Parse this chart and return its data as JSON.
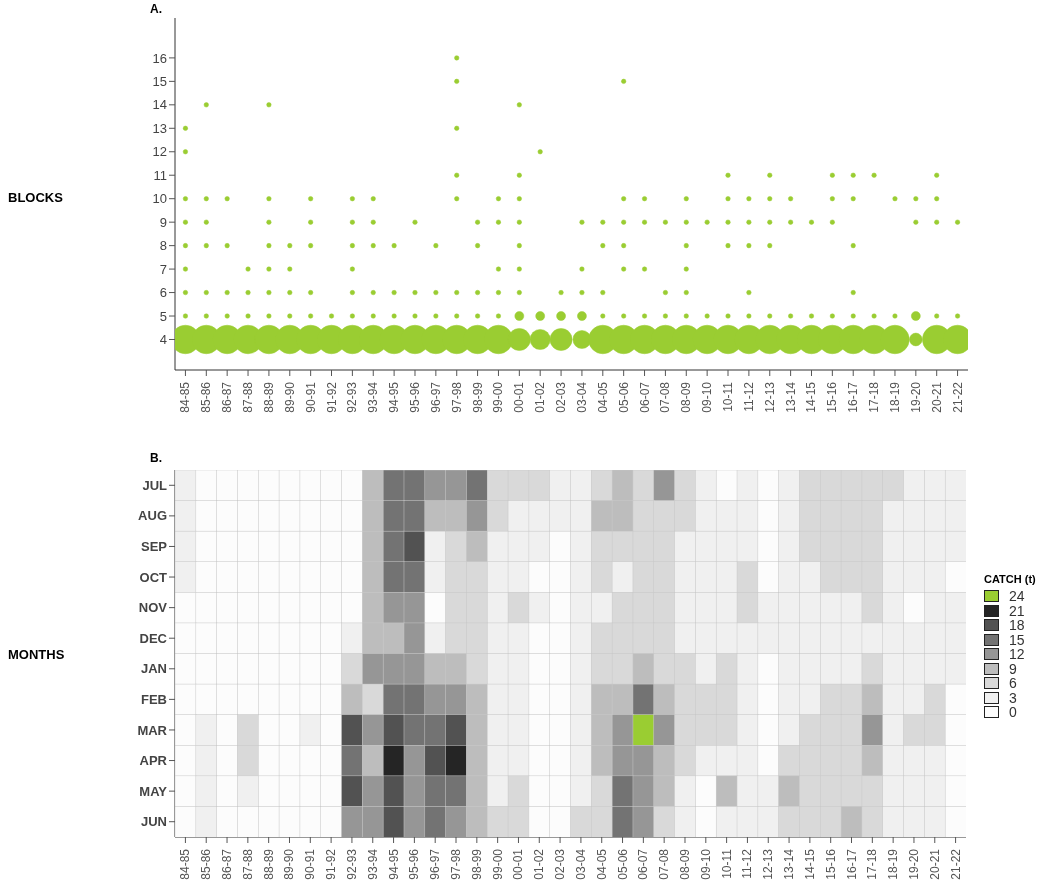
{
  "chart_data": [
    {
      "type": "bubble",
      "title": "A.",
      "ylabel": "BLOCKS",
      "categories": [
        "84-85",
        "85-86",
        "86-87",
        "87-88",
        "88-89",
        "89-90",
        "90-91",
        "91-92",
        "92-93",
        "93-94",
        "94-95",
        "95-96",
        "96-97",
        "97-98",
        "98-99",
        "99-00",
        "00-01",
        "01-02",
        "02-03",
        "03-04",
        "04-05",
        "05-06",
        "06-07",
        "07-08",
        "08-09",
        "09-10",
        "10-11",
        "11-12",
        "12-13",
        "13-14",
        "14-15",
        "15-16",
        "16-17",
        "17-18",
        "18-19",
        "19-20",
        "20-21",
        "21-22"
      ],
      "ylim": [
        2.7,
        17.7
      ],
      "yticks": [
        4,
        5,
        6,
        7,
        8,
        9,
        10,
        11,
        12,
        13,
        14,
        15,
        16
      ],
      "series": [
        {
          "type": "bubble",
          "color": "#9acd32",
          "x": [
            "84-85",
            "85-86",
            "86-87",
            "87-88",
            "88-89",
            "89-90",
            "90-91",
            "91-92",
            "92-93",
            "93-94",
            "94-95",
            "95-96",
            "96-97",
            "97-98",
            "98-99",
            "99-00",
            "00-01",
            "01-02",
            "02-03",
            "03-04",
            "04-05",
            "05-06",
            "06-07",
            "07-08",
            "08-09",
            "09-10",
            "10-11",
            "11-12",
            "12-13",
            "13-14",
            "14-15",
            "15-16",
            "16-17",
            "17-18",
            "18-19",
            "19-20",
            "20-21",
            "21-22",
            "00-01",
            "01-02",
            "02-03",
            "03-04",
            "19-20"
          ],
          "values": [
            4,
            4,
            4,
            4,
            4,
            4,
            4,
            4,
            4,
            4,
            4,
            4,
            4,
            4,
            4,
            4,
            4,
            4,
            4,
            4,
            4,
            4,
            4,
            4,
            4,
            4,
            4,
            4,
            4,
            4,
            4,
            4,
            4,
            4,
            4,
            4,
            4,
            4,
            5,
            5,
            5,
            5,
            5
          ],
          "sizes": [
            1,
            1,
            1,
            1,
            1,
            1,
            1,
            1,
            1,
            1,
            1,
            1,
            1,
            1,
            1,
            1,
            0.6,
            0.5,
            0.6,
            0.4,
            1,
            1,
            1,
            1,
            1,
            1,
            1,
            1,
            1,
            1,
            1,
            1,
            1,
            1,
            1,
            0.2,
            1,
            1,
            0.1,
            0.1,
            0.1,
            0.1,
            0.1
          ]
        },
        {
          "type": "scatter",
          "color": "#9acd32",
          "x": [
            "84-85",
            "84-85",
            "84-85",
            "84-85",
            "84-85",
            "84-85",
            "84-85",
            "84-85",
            "85-86",
            "85-86",
            "85-86",
            "85-86",
            "85-86",
            "85-86",
            "86-87",
            "86-87",
            "86-87",
            "86-87",
            "87-88",
            "87-88",
            "87-88",
            "88-89",
            "88-89",
            "88-89",
            "88-89",
            "88-89",
            "88-89",
            "88-89",
            "89-90",
            "89-90",
            "89-90",
            "89-90",
            "90-91",
            "90-91",
            "90-91",
            "90-91",
            "90-91",
            "91-92",
            "92-93",
            "92-93",
            "92-93",
            "92-93",
            "92-93",
            "92-93",
            "93-94",
            "93-94",
            "93-94",
            "93-94",
            "93-94",
            "94-95",
            "94-95",
            "94-95",
            "95-96",
            "95-96",
            "95-96",
            "96-97",
            "96-97",
            "96-97",
            "97-98",
            "97-98",
            "97-98",
            "97-98",
            "97-98",
            "97-98",
            "97-98",
            "98-99",
            "98-99",
            "98-99",
            "98-99",
            "99-00",
            "99-00",
            "99-00",
            "99-00",
            "99-00",
            "00-01",
            "00-01",
            "00-01",
            "00-01",
            "00-01",
            "00-01",
            "00-01",
            "01-02",
            "02-03",
            "03-04",
            "03-04",
            "03-04",
            "04-05",
            "04-05",
            "04-05",
            "04-05",
            "05-06",
            "05-06",
            "05-06",
            "05-06",
            "05-06",
            "05-06",
            "06-07",
            "06-07",
            "06-07",
            "06-07",
            "07-08",
            "07-08",
            "07-08",
            "08-09",
            "08-09",
            "08-09",
            "08-09",
            "08-09",
            "08-09",
            "09-10",
            "09-10",
            "10-11",
            "10-11",
            "10-11",
            "10-11",
            "10-11",
            "11-12",
            "11-12",
            "11-12",
            "11-12",
            "11-12",
            "12-13",
            "12-13",
            "12-13",
            "12-13",
            "12-13",
            "13-14",
            "13-14",
            "13-14",
            "14-15",
            "14-15",
            "15-16",
            "15-16",
            "15-16",
            "15-16",
            "16-17",
            "16-17",
            "16-17",
            "16-17",
            "16-17",
            "17-18",
            "17-18",
            "18-19",
            "18-19",
            "19-20",
            "19-20",
            "20-21",
            "20-21",
            "20-21",
            "20-21",
            "21-22",
            "21-22"
          ],
          "values": [
            13,
            12,
            10,
            9,
            8,
            7,
            6,
            5,
            14,
            10,
            9,
            8,
            6,
            5,
            10,
            8,
            6,
            5,
            7,
            6,
            5,
            14,
            10,
            9,
            8,
            7,
            6,
            5,
            8,
            7,
            6,
            5,
            10,
            9,
            8,
            6,
            5,
            5,
            10,
            9,
            8,
            7,
            6,
            5,
            10,
            9,
            8,
            6,
            5,
            8,
            6,
            5,
            9,
            6,
            5,
            8,
            6,
            5,
            16,
            15,
            13,
            11,
            10,
            6,
            5,
            9,
            8,
            6,
            5,
            10,
            9,
            7,
            6,
            5,
            14,
            11,
            10,
            9,
            8,
            7,
            6,
            12,
            6,
            9,
            7,
            6,
            9,
            8,
            6,
            5,
            15,
            10,
            9,
            8,
            7,
            5,
            10,
            9,
            7,
            5,
            9,
            6,
            5,
            10,
            9,
            8,
            7,
            6,
            5,
            9,
            5,
            11,
            10,
            9,
            8,
            5,
            10,
            9,
            8,
            6,
            5,
            11,
            10,
            9,
            8,
            5,
            10,
            9,
            5,
            9,
            5,
            11,
            10,
            9,
            5,
            11,
            10,
            8,
            6,
            5,
            11,
            5,
            10,
            5,
            10,
            9,
            11,
            10,
            9,
            5,
            9,
            5
          ]
        }
      ]
    },
    {
      "type": "heatmap",
      "title": "B.",
      "ylabel": "MONTHS",
      "clabel": "CATCH (t)",
      "categories": [
        "84-85",
        "85-86",
        "86-87",
        "87-88",
        "88-89",
        "89-90",
        "90-91",
        "91-92",
        "92-93",
        "93-94",
        "94-95",
        "95-96",
        "96-97",
        "97-98",
        "98-99",
        "99-00",
        "00-01",
        "01-02",
        "02-03",
        "03-04",
        "04-05",
        "05-06",
        "06-07",
        "07-08",
        "08-09",
        "09-10",
        "10-11",
        "11-12",
        "12-13",
        "13-14",
        "14-15",
        "15-16",
        "16-17",
        "17-18",
        "18-19",
        "19-20",
        "20-21",
        "21-22"
      ],
      "y_categories": [
        "JUL",
        "AUG",
        "SEP",
        "OCT",
        "NOV",
        "DEC",
        "JAN",
        "FEB",
        "MAR",
        "APR",
        "MAY",
        "JUN"
      ],
      "cticks": [
        0,
        3,
        6,
        9,
        12,
        15,
        18,
        21,
        24
      ],
      "cells": [
        [
          4,
          1,
          1,
          1,
          1,
          1,
          1,
          1,
          1,
          10,
          16,
          16,
          13,
          13,
          16,
          7,
          7,
          7,
          4,
          4,
          7,
          10,
          7,
          13,
          7,
          4,
          1,
          4,
          1,
          4,
          7,
          7,
          7,
          7,
          7,
          4,
          4,
          4
        ],
        [
          4,
          1,
          1,
          1,
          1,
          1,
          1,
          1,
          1,
          10,
          16,
          16,
          10,
          10,
          13,
          7,
          4,
          4,
          4,
          4,
          10,
          10,
          7,
          7,
          7,
          4,
          4,
          4,
          1,
          4,
          7,
          7,
          7,
          7,
          4,
          4,
          4,
          4
        ],
        [
          4,
          1,
          1,
          1,
          1,
          1,
          1,
          1,
          1,
          10,
          16,
          19,
          4,
          7,
          10,
          4,
          4,
          4,
          1,
          4,
          7,
          7,
          7,
          7,
          4,
          4,
          4,
          4,
          1,
          4,
          7,
          7,
          7,
          7,
          4,
          4,
          4,
          4
        ],
        [
          4,
          1,
          1,
          1,
          1,
          1,
          1,
          1,
          1,
          10,
          16,
          16,
          4,
          7,
          7,
          4,
          4,
          1,
          1,
          4,
          7,
          4,
          7,
          7,
          4,
          4,
          4,
          7,
          1,
          4,
          4,
          7,
          7,
          7,
          4,
          4,
          4,
          1
        ],
        [
          1,
          1,
          1,
          1,
          1,
          1,
          1,
          1,
          1,
          10,
          13,
          13,
          1,
          7,
          7,
          4,
          7,
          4,
          1,
          4,
          4,
          7,
          7,
          7,
          4,
          4,
          4,
          7,
          4,
          4,
          4,
          4,
          4,
          7,
          4,
          1,
          4,
          4
        ],
        [
          1,
          1,
          1,
          1,
          1,
          1,
          1,
          1,
          4,
          10,
          10,
          13,
          4,
          7,
          7,
          4,
          4,
          1,
          1,
          4,
          7,
          7,
          7,
          7,
          4,
          4,
          4,
          4,
          4,
          4,
          4,
          4,
          4,
          4,
          4,
          4,
          4,
          4
        ],
        [
          1,
          1,
          1,
          1,
          1,
          1,
          1,
          1,
          7,
          13,
          13,
          13,
          10,
          10,
          7,
          4,
          4,
          1,
          1,
          4,
          7,
          7,
          10,
          7,
          7,
          4,
          7,
          4,
          1,
          4,
          4,
          4,
          4,
          7,
          4,
          4,
          4,
          4
        ],
        [
          1,
          1,
          1,
          1,
          1,
          1,
          1,
          1,
          10,
          7,
          16,
          16,
          13,
          13,
          10,
          4,
          4,
          1,
          1,
          4,
          10,
          10,
          16,
          10,
          7,
          7,
          7,
          4,
          1,
          4,
          4,
          7,
          7,
          10,
          4,
          4,
          7,
          1
        ],
        [
          1,
          4,
          1,
          7,
          1,
          1,
          4,
          1,
          19,
          13,
          19,
          16,
          16,
          19,
          10,
          4,
          4,
          1,
          1,
          4,
          10,
          13,
          24,
          13,
          7,
          7,
          7,
          4,
          1,
          4,
          7,
          7,
          7,
          13,
          4,
          7,
          7,
          1
        ],
        [
          1,
          4,
          1,
          7,
          1,
          1,
          1,
          1,
          16,
          10,
          22,
          13,
          19,
          22,
          10,
          4,
          4,
          1,
          1,
          4,
          10,
          13,
          13,
          10,
          7,
          4,
          4,
          4,
          1,
          7,
          7,
          7,
          7,
          10,
          4,
          4,
          4,
          1
        ],
        [
          1,
          4,
          1,
          4,
          1,
          1,
          1,
          1,
          19,
          13,
          19,
          13,
          16,
          16,
          10,
          4,
          7,
          1,
          1,
          4,
          7,
          16,
          13,
          10,
          4,
          1,
          10,
          4,
          4,
          10,
          7,
          7,
          7,
          7,
          4,
          4,
          4,
          1
        ],
        [
          1,
          4,
          1,
          1,
          1,
          1,
          1,
          1,
          13,
          13,
          19,
          13,
          16,
          13,
          10,
          7,
          7,
          1,
          1,
          7,
          7,
          16,
          13,
          7,
          4,
          1,
          4,
          4,
          4,
          7,
          7,
          7,
          10,
          7,
          4,
          4,
          4,
          1
        ]
      ]
    }
  ]
}
